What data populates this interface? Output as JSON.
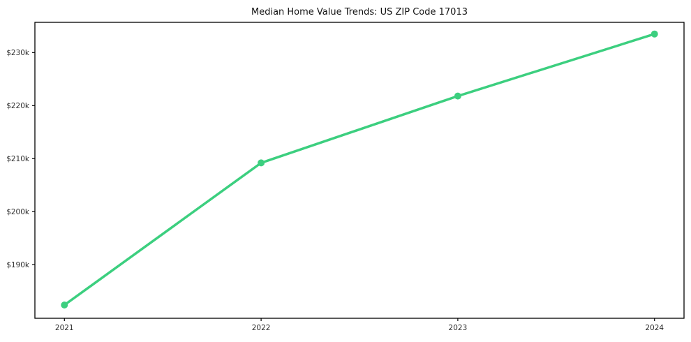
{
  "chart_data": {
    "type": "line",
    "title": "Median Home Value Trends: US ZIP Code 17013",
    "categories": [
      "2021",
      "2022",
      "2023",
      "2024"
    ],
    "values": [
      182400,
      209200,
      221800,
      233500
    ],
    "series": [
      {
        "name": "median-home-value",
        "values": [
          182400,
          209200,
          221800,
          233500
        ]
      }
    ],
    "y_tick_values": [
      190000,
      200000,
      210000,
      220000,
      230000
    ],
    "y_tick_labels": [
      "$190k",
      "$200k",
      "$210k",
      "$220k",
      "$230k"
    ],
    "ylim": [
      179900,
      235700
    ],
    "xlim_index": [
      -0.15,
      3.15
    ],
    "xlabel": "",
    "ylabel": "",
    "grid": false,
    "legend": false,
    "marker": "circle",
    "line_color": "#3ccf7f"
  },
  "style": {
    "background": "#ffffff",
    "spine_color": "#000000",
    "tick_color": "#000000",
    "tick_label_color": "#2b2b2b",
    "title_color": "#111111"
  }
}
